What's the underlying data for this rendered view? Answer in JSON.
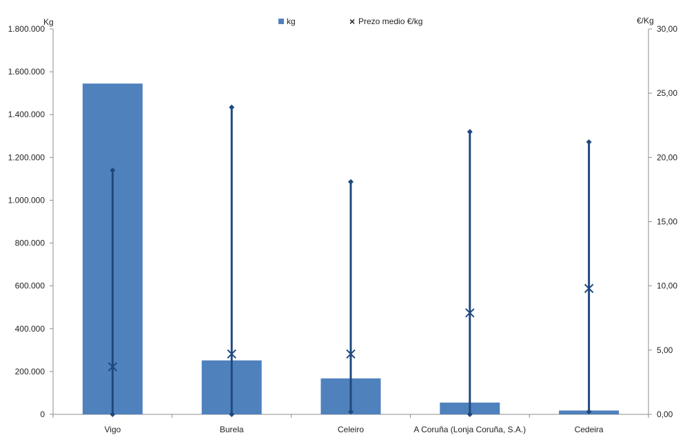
{
  "chart_data": {
    "type": "bar",
    "categories": [
      "Vigo",
      "Burela",
      "Celeiro",
      "A Coruña (Lonja Coruña, S.A.)",
      "Cedeira"
    ],
    "series": [
      {
        "name": "kg",
        "type": "bar",
        "axis": "left",
        "values": [
          1545000,
          252000,
          168000,
          55000,
          18000
        ]
      },
      {
        "name": "Prezo medio €/kg",
        "type": "scatter",
        "axis": "right",
        "values": [
          3.7,
          4.7,
          4.7,
          7.9,
          9.8
        ],
        "min": [
          0.0,
          0.0,
          0.2,
          0.0,
          0.2
        ],
        "max": [
          19.0,
          23.9,
          18.1,
          22.0,
          21.2
        ]
      }
    ],
    "ylabel": "Kg",
    "y2label": "€/Kg",
    "ylim": [
      0,
      1800000
    ],
    "y2lim": [
      0,
      30
    ],
    "yticks": [
      "0",
      "200.000",
      "400.000",
      "600.000",
      "800.000",
      "1.000.000",
      "1.200.000",
      "1.400.000",
      "1.600.000",
      "1.800.000"
    ],
    "y2ticks": [
      "0,00",
      "5,00",
      "10,00",
      "15,00",
      "20,00",
      "25,00",
      "30,00"
    ],
    "legend_position": "top-center",
    "grid": false,
    "colors": {
      "bar": "#4f81bd",
      "line": "#1f497d",
      "axis": "#8c8c8c"
    }
  }
}
